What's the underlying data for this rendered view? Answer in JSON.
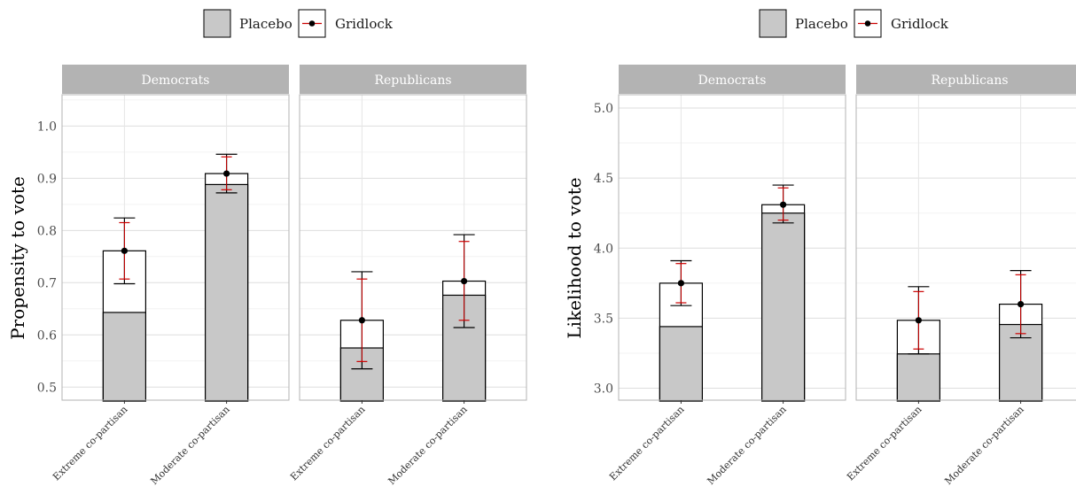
{
  "legend": {
    "placebo_label": "Placebo",
    "gridlock_label": "Gridlock",
    "colors": {
      "placebo_fill": "#c8c8c8",
      "gridlock_point": "#000000",
      "gridlock_error": "#cc0000"
    }
  },
  "chart_data": [
    {
      "type": "bar",
      "ylabel": "Propensity to vote",
      "ylim": [
        0.475,
        1.06
      ],
      "yticks": [
        0.5,
        0.6,
        0.7,
        0.8,
        0.9,
        1.0
      ],
      "ytick_labels": [
        "0.5",
        "0.6",
        "0.7",
        "0.8",
        "0.9",
        "1.0"
      ],
      "grid": true,
      "legend_position": "top",
      "categories": [
        "Extreme co-partisan",
        "Moderate co-partisan"
      ],
      "panels": [
        {
          "name": "Democrats",
          "placebo": [
            0.643,
            0.888
          ],
          "gridlock": [
            0.761,
            0.909
          ],
          "placebo_ci": [
            [
              0.698,
              0.824
            ],
            [
              0.872,
              0.946
            ]
          ],
          "gridlock_ci": [
            [
              0.707,
              0.815
            ],
            [
              0.878,
              0.941
            ]
          ]
        },
        {
          "name": "Republicans",
          "placebo": [
            0.575,
            0.676
          ],
          "gridlock": [
            0.628,
            0.703
          ],
          "placebo_ci": [
            [
              0.535,
              0.721
            ],
            [
              0.614,
              0.792
            ]
          ],
          "gridlock_ci": [
            [
              0.549,
              0.707
            ],
            [
              0.628,
              0.779
            ]
          ]
        }
      ]
    },
    {
      "type": "bar",
      "ylabel": "Likelihood to vote",
      "ylim": [
        2.915,
        5.095
      ],
      "yticks": [
        3.0,
        3.5,
        4.0,
        4.5,
        5.0
      ],
      "ytick_labels": [
        "3.0",
        "3.5",
        "4.0",
        "4.5",
        "5.0"
      ],
      "grid": true,
      "legend_position": "top",
      "categories": [
        "Extreme co-partisan",
        "Moderate co-partisan"
      ],
      "panels": [
        {
          "name": "Democrats",
          "placebo": [
            3.44,
            4.25
          ],
          "gridlock": [
            3.75,
            4.31
          ],
          "placebo_ci": [
            [
              3.59,
              3.91
            ],
            [
              4.18,
              4.45
            ]
          ],
          "gridlock_ci": [
            [
              3.61,
              3.89
            ],
            [
              4.2,
              4.43
            ]
          ]
        },
        {
          "name": "Republicans",
          "placebo": [
            3.245,
            3.455
          ],
          "gridlock": [
            3.485,
            3.6
          ],
          "placebo_ci": [
            [
              3.245,
              3.725
            ],
            [
              3.36,
              3.84
            ]
          ],
          "gridlock_ci": [
            [
              3.28,
              3.69
            ],
            [
              3.39,
              3.81
            ]
          ]
        }
      ]
    }
  ]
}
